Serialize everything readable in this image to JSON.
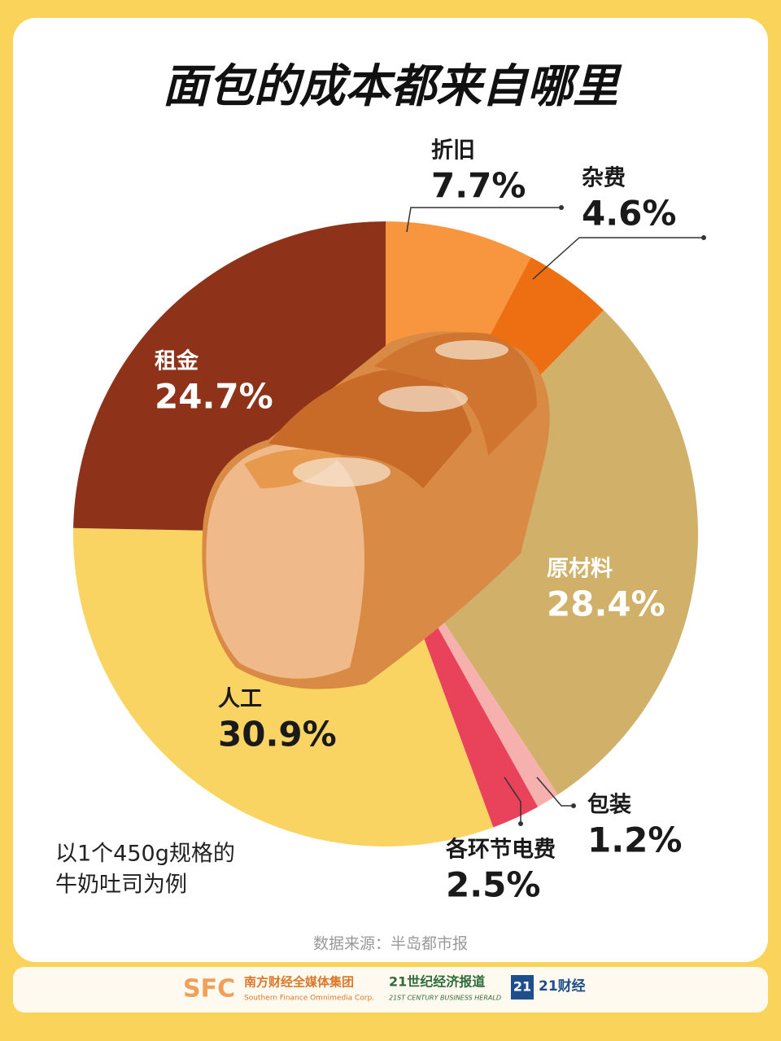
{
  "chart_data": {
    "type": "pie",
    "title": "面包的成本都来自哪里",
    "categories": [
      "折旧",
      "杂费",
      "原材料",
      "包装",
      "各环节电费",
      "人工",
      "租金"
    ],
    "values": [
      7.7,
      4.6,
      28.4,
      1.2,
      2.5,
      30.9,
      24.7
    ],
    "value_labels": [
      "7.7%",
      "4.6%",
      "28.4%",
      "1.2%",
      "2.5%",
      "30.9%",
      "24.7%"
    ],
    "colors": [
      "#f7963e",
      "#ee6e12",
      "#d1b06a",
      "#f6b0ad",
      "#e8435a",
      "#fad462",
      "#8e3219"
    ],
    "note": [
      "以1个450g规格的",
      "牛奶吐司为例"
    ],
    "source": "数据来源：半岛都市报"
  },
  "footer": {
    "sfc": "SFC",
    "group": "南方财经全媒体集团",
    "group_en": "Southern Finance Omnimedia Corp.",
    "herald": "21世纪经济报道",
    "herald_en": "21ST CENTURY BUSINESS HERALD",
    "badge": "21",
    "app": "21财经"
  }
}
